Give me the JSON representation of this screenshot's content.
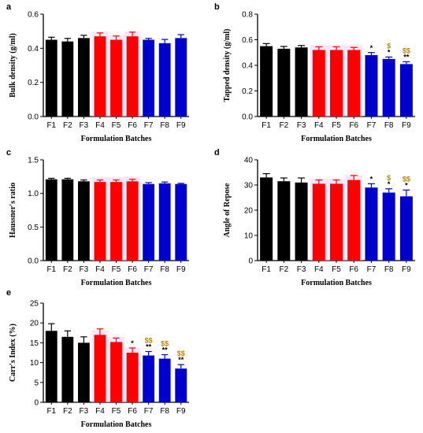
{
  "colors": {
    "group1": "#000000",
    "group2": "#ff0000",
    "group3": "#0000cc",
    "star": "#000000",
    "dollar": "#b8860b"
  },
  "chart_data": [
    {
      "panel": "a",
      "type": "bar",
      "categories": [
        "F1",
        "F2",
        "F3",
        "F4",
        "F5",
        "F6",
        "F7",
        "F8",
        "F9"
      ],
      "values": [
        0.45,
        0.44,
        0.46,
        0.47,
        0.45,
        0.47,
        0.45,
        0.43,
        0.46
      ],
      "errors": [
        0.015,
        0.018,
        0.016,
        0.02,
        0.022,
        0.025,
        0.008,
        0.022,
        0.02
      ],
      "ylim": [
        0,
        0.6
      ],
      "yticks": [
        "0.0",
        "0.2",
        "0.4",
        "0.6"
      ],
      "ylabel": "Bulk density (g/ml)",
      "xlabel": "Formulation Batches",
      "annotations": [],
      "grid": false
    },
    {
      "panel": "b",
      "type": "bar",
      "categories": [
        "F1",
        "F2",
        "F3",
        "F4",
        "F5",
        "F6",
        "F7",
        "F8",
        "F9"
      ],
      "values": [
        0.55,
        0.53,
        0.54,
        0.52,
        0.52,
        0.52,
        0.48,
        0.45,
        0.41
      ],
      "errors": [
        0.02,
        0.018,
        0.015,
        0.025,
        0.025,
        0.02,
        0.02,
        0.015,
        0.018
      ],
      "ylim": [
        0,
        0.8
      ],
      "yticks": [
        "0.0",
        "0.2",
        "0.4",
        "0.6",
        "0.8"
      ],
      "ylabel": "Tapped density (g/ml)",
      "xlabel": "Formulation Batches",
      "annotations": [
        "",
        "",
        "",
        "",
        "",
        "",
        "*",
        "$\n*",
        "$$\n**"
      ],
      "grid": false
    },
    {
      "panel": "c",
      "type": "bar",
      "categories": [
        "F1",
        "F2",
        "F3",
        "F4",
        "F5",
        "F6",
        "F7",
        "F8",
        "F9"
      ],
      "values": [
        1.21,
        1.21,
        1.18,
        1.17,
        1.17,
        1.18,
        1.14,
        1.15,
        1.14
      ],
      "errors": [
        0.015,
        0.015,
        0.02,
        0.03,
        0.03,
        0.03,
        0.02,
        0.02,
        0.01
      ],
      "ylim": [
        0,
        1.5
      ],
      "yticks": [
        "0.0",
        "0.5",
        "1.0",
        "1.5"
      ],
      "ylabel": "Haussner's ratio",
      "xlabel": "Formulation Batches",
      "annotations": [],
      "grid": false
    },
    {
      "panel": "d",
      "type": "bar",
      "categories": [
        "F1",
        "F2",
        "F3",
        "F4",
        "F5",
        "F6",
        "F7",
        "F8",
        "F9"
      ],
      "values": [
        33,
        31.5,
        31,
        30.5,
        30.5,
        32,
        29,
        27,
        25.5
      ],
      "errors": [
        1.5,
        1.3,
        1.8,
        1.5,
        1.5,
        1.8,
        1.5,
        1.5,
        2.5
      ],
      "ylim": [
        0,
        40
      ],
      "yticks": [
        "0",
        "10",
        "20",
        "30",
        "40"
      ],
      "ylabel": "Angle of Repose",
      "xlabel": "Formulation Batches",
      "annotations": [
        "",
        "",
        "",
        "",
        "",
        "",
        "*",
        "$\n*",
        "$$\n*"
      ],
      "grid": false
    },
    {
      "panel": "e",
      "type": "bar",
      "categories": [
        "F1",
        "F2",
        "F3",
        "F4",
        "F5",
        "F6",
        "F7",
        "F8",
        "F9"
      ],
      "values": [
        18,
        16.5,
        15,
        17,
        15.2,
        12.5,
        11.8,
        11,
        8.5
      ],
      "errors": [
        1.8,
        1.5,
        1.5,
        1.5,
        1,
        1.2,
        1,
        1,
        1
      ],
      "ylim": [
        0,
        25
      ],
      "yticks": [
        "0",
        "5",
        "10",
        "15",
        "20",
        "25"
      ],
      "ylabel": "Carr's Index (%)",
      "xlabel": "Formulation Batches",
      "annotations": [
        "",
        "",
        "",
        "",
        "",
        "*",
        "$$\n**",
        "$$\n**",
        "$$\n**"
      ],
      "grid": false
    }
  ]
}
